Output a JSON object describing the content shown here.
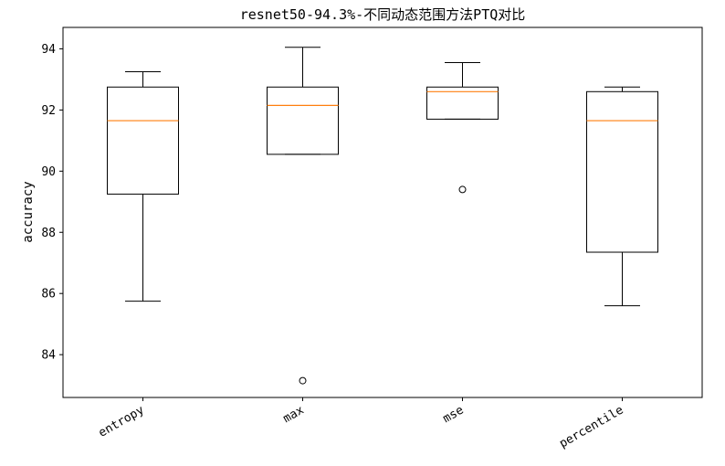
{
  "chart_data": {
    "type": "boxplot",
    "title": "resnet50-94.3%-不同动态范围方法PTQ对比",
    "xlabel": "",
    "ylabel": "accuracy",
    "ylim": [
      82.6,
      94.7
    ],
    "yticks": [
      84,
      86,
      88,
      90,
      92,
      94
    ],
    "categories": [
      "entropy",
      "max",
      "mse",
      "percentile"
    ],
    "boxes": [
      {
        "label": "entropy",
        "whisker_low": 85.75,
        "q1": 89.25,
        "median": 91.65,
        "q3": 92.75,
        "whisker_high": 93.25,
        "outliers": []
      },
      {
        "label": "max",
        "whisker_low": 90.55,
        "q1": 90.55,
        "median": 92.15,
        "q3": 92.75,
        "whisker_high": 94.05,
        "outliers": [
          83.15
        ]
      },
      {
        "label": "mse",
        "whisker_low": 91.7,
        "q1": 91.7,
        "median": 92.6,
        "q3": 92.75,
        "whisker_high": 93.55,
        "outliers": [
          89.4
        ]
      },
      {
        "label": "percentile",
        "whisker_low": 85.6,
        "q1": 87.35,
        "median": 91.65,
        "q3": 92.6,
        "whisker_high": 92.75,
        "outliers": []
      }
    ],
    "colors": {
      "box": "#000000",
      "median": "#ff7f0e"
    },
    "grid": false,
    "legend": "none"
  }
}
